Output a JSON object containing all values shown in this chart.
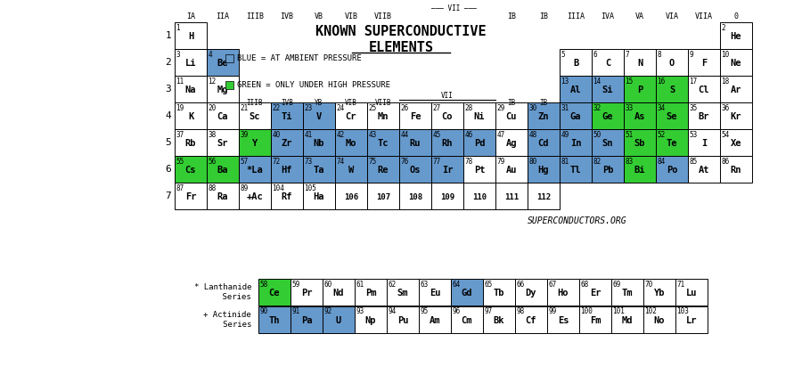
{
  "title_line1": "KNOWN SUPERCONDUCTIVE ELEMENTS",
  "title_line2": "ELEMENTS",
  "legend_blue": "BLUE = AT AMBIENT PRESSURE",
  "legend_green": "GREEN = ONLY UNDER HIGH PRESSURE",
  "website": "SUPERCONDUCTORS.ORG",
  "blue_color": "#6699cc",
  "green_color": "#33cc33",
  "white_color": "#ffffff",
  "elements": [
    {
      "symbol": "H",
      "num": 1,
      "row": 1,
      "col": 1,
      "color": "white"
    },
    {
      "symbol": "He",
      "num": 2,
      "row": 1,
      "col": 18,
      "color": "white"
    },
    {
      "symbol": "Li",
      "num": 3,
      "row": 2,
      "col": 1,
      "color": "white"
    },
    {
      "symbol": "Be",
      "num": 4,
      "row": 2,
      "col": 2,
      "color": "blue"
    },
    {
      "symbol": "B",
      "num": 5,
      "row": 2,
      "col": 13,
      "color": "white"
    },
    {
      "symbol": "C",
      "num": 6,
      "row": 2,
      "col": 14,
      "color": "white"
    },
    {
      "symbol": "N",
      "num": 7,
      "row": 2,
      "col": 15,
      "color": "white"
    },
    {
      "symbol": "O",
      "num": 8,
      "row": 2,
      "col": 16,
      "color": "white"
    },
    {
      "symbol": "F",
      "num": 9,
      "row": 2,
      "col": 17,
      "color": "white"
    },
    {
      "symbol": "Ne",
      "num": 10,
      "row": 2,
      "col": 18,
      "color": "white"
    },
    {
      "symbol": "Na",
      "num": 11,
      "row": 3,
      "col": 1,
      "color": "white"
    },
    {
      "symbol": "Mg",
      "num": 12,
      "row": 3,
      "col": 2,
      "color": "white"
    },
    {
      "symbol": "Al",
      "num": 13,
      "row": 3,
      "col": 13,
      "color": "blue"
    },
    {
      "symbol": "Si",
      "num": 14,
      "row": 3,
      "col": 14,
      "color": "blue"
    },
    {
      "symbol": "P",
      "num": 15,
      "row": 3,
      "col": 15,
      "color": "green"
    },
    {
      "symbol": "S",
      "num": 16,
      "row": 3,
      "col": 16,
      "color": "green"
    },
    {
      "symbol": "Cl",
      "num": 17,
      "row": 3,
      "col": 17,
      "color": "white"
    },
    {
      "symbol": "Ar",
      "num": 18,
      "row": 3,
      "col": 18,
      "color": "white"
    },
    {
      "symbol": "K",
      "num": 19,
      "row": 4,
      "col": 1,
      "color": "white"
    },
    {
      "symbol": "Ca",
      "num": 20,
      "row": 4,
      "col": 2,
      "color": "white"
    },
    {
      "symbol": "Sc",
      "num": 21,
      "row": 4,
      "col": 3,
      "color": "white"
    },
    {
      "symbol": "Ti",
      "num": 22,
      "row": 4,
      "col": 4,
      "color": "blue"
    },
    {
      "symbol": "V",
      "num": 23,
      "row": 4,
      "col": 5,
      "color": "blue"
    },
    {
      "symbol": "Cr",
      "num": 24,
      "row": 4,
      "col": 6,
      "color": "white"
    },
    {
      "symbol": "Mn",
      "num": 25,
      "row": 4,
      "col": 7,
      "color": "white"
    },
    {
      "symbol": "Fe",
      "num": 26,
      "row": 4,
      "col": 8,
      "color": "white"
    },
    {
      "symbol": "Co",
      "num": 27,
      "row": 4,
      "col": 9,
      "color": "white"
    },
    {
      "symbol": "Ni",
      "num": 28,
      "row": 4,
      "col": 10,
      "color": "white"
    },
    {
      "symbol": "Cu",
      "num": 29,
      "row": 4,
      "col": 11,
      "color": "white"
    },
    {
      "symbol": "Zn",
      "num": 30,
      "row": 4,
      "col": 12,
      "color": "blue"
    },
    {
      "symbol": "Ga",
      "num": 31,
      "row": 4,
      "col": 13,
      "color": "blue"
    },
    {
      "symbol": "Ge",
      "num": 32,
      "row": 4,
      "col": 14,
      "color": "green"
    },
    {
      "symbol": "As",
      "num": 33,
      "row": 4,
      "col": 15,
      "color": "green"
    },
    {
      "symbol": "Se",
      "num": 34,
      "row": 4,
      "col": 16,
      "color": "green"
    },
    {
      "symbol": "Br",
      "num": 35,
      "row": 4,
      "col": 17,
      "color": "white"
    },
    {
      "symbol": "Kr",
      "num": 36,
      "row": 4,
      "col": 18,
      "color": "white"
    },
    {
      "symbol": "Rb",
      "num": 37,
      "row": 5,
      "col": 1,
      "color": "white"
    },
    {
      "symbol": "Sr",
      "num": 38,
      "row": 5,
      "col": 2,
      "color": "white"
    },
    {
      "symbol": "Y",
      "num": 39,
      "row": 5,
      "col": 3,
      "color": "green"
    },
    {
      "symbol": "Zr",
      "num": 40,
      "row": 5,
      "col": 4,
      "color": "blue"
    },
    {
      "symbol": "Nb",
      "num": 41,
      "row": 5,
      "col": 5,
      "color": "blue"
    },
    {
      "symbol": "Mo",
      "num": 42,
      "row": 5,
      "col": 6,
      "color": "blue"
    },
    {
      "symbol": "Tc",
      "num": 43,
      "row": 5,
      "col": 7,
      "color": "blue"
    },
    {
      "symbol": "Ru",
      "num": 44,
      "row": 5,
      "col": 8,
      "color": "blue"
    },
    {
      "symbol": "Rh",
      "num": 45,
      "row": 5,
      "col": 9,
      "color": "blue"
    },
    {
      "symbol": "Pd",
      "num": 46,
      "row": 5,
      "col": 10,
      "color": "blue"
    },
    {
      "symbol": "Ag",
      "num": 47,
      "row": 5,
      "col": 11,
      "color": "white"
    },
    {
      "symbol": "Cd",
      "num": 48,
      "row": 5,
      "col": 12,
      "color": "blue"
    },
    {
      "symbol": "In",
      "num": 49,
      "row": 5,
      "col": 13,
      "color": "blue"
    },
    {
      "symbol": "Sn",
      "num": 50,
      "row": 5,
      "col": 14,
      "color": "blue"
    },
    {
      "symbol": "Sb",
      "num": 51,
      "row": 5,
      "col": 15,
      "color": "green"
    },
    {
      "symbol": "Te",
      "num": 52,
      "row": 5,
      "col": 16,
      "color": "green"
    },
    {
      "symbol": "I",
      "num": 53,
      "row": 5,
      "col": 17,
      "color": "white"
    },
    {
      "symbol": "Xe",
      "num": 54,
      "row": 5,
      "col": 18,
      "color": "white"
    },
    {
      "symbol": "Cs",
      "num": 55,
      "row": 6,
      "col": 1,
      "color": "green"
    },
    {
      "symbol": "Ba",
      "num": 56,
      "row": 6,
      "col": 2,
      "color": "green"
    },
    {
      "symbol": "*La",
      "num": 57,
      "row": 6,
      "col": 3,
      "color": "blue"
    },
    {
      "symbol": "Hf",
      "num": 72,
      "row": 6,
      "col": 4,
      "color": "blue"
    },
    {
      "symbol": "Ta",
      "num": 73,
      "row": 6,
      "col": 5,
      "color": "blue"
    },
    {
      "symbol": "W",
      "num": 74,
      "row": 6,
      "col": 6,
      "color": "blue"
    },
    {
      "symbol": "Re",
      "num": 75,
      "row": 6,
      "col": 7,
      "color": "blue"
    },
    {
      "symbol": "Os",
      "num": 76,
      "row": 6,
      "col": 8,
      "color": "blue"
    },
    {
      "symbol": "Ir",
      "num": 77,
      "row": 6,
      "col": 9,
      "color": "blue"
    },
    {
      "symbol": "Pt",
      "num": 78,
      "row": 6,
      "col": 10,
      "color": "white"
    },
    {
      "symbol": "Au",
      "num": 79,
      "row": 6,
      "col": 11,
      "color": "white"
    },
    {
      "symbol": "Hg",
      "num": 80,
      "row": 6,
      "col": 12,
      "color": "blue"
    },
    {
      "symbol": "Tl",
      "num": 81,
      "row": 6,
      "col": 13,
      "color": "blue"
    },
    {
      "symbol": "Pb",
      "num": 82,
      "row": 6,
      "col": 14,
      "color": "blue"
    },
    {
      "symbol": "Bi",
      "num": 83,
      "row": 6,
      "col": 15,
      "color": "green"
    },
    {
      "symbol": "Po",
      "num": 84,
      "row": 6,
      "col": 16,
      "color": "blue"
    },
    {
      "symbol": "At",
      "num": 85,
      "row": 6,
      "col": 17,
      "color": "white"
    },
    {
      "symbol": "Rn",
      "num": 86,
      "row": 6,
      "col": 18,
      "color": "white"
    },
    {
      "symbol": "Fr",
      "num": 87,
      "row": 7,
      "col": 1,
      "color": "white"
    },
    {
      "symbol": "Ra",
      "num": 88,
      "row": 7,
      "col": 2,
      "color": "white"
    },
    {
      "symbol": "+Ac",
      "num": 89,
      "row": 7,
      "col": 3,
      "color": "white"
    },
    {
      "symbol": "Rf",
      "num": 104,
      "row": 7,
      "col": 4,
      "color": "white"
    },
    {
      "symbol": "Ha",
      "num": 105,
      "row": 7,
      "col": 5,
      "color": "white"
    },
    {
      "symbol": "106",
      "num": 106,
      "row": 7,
      "col": 6,
      "color": "white"
    },
    {
      "symbol": "107",
      "num": 107,
      "row": 7,
      "col": 7,
      "color": "white"
    },
    {
      "symbol": "108",
      "num": 108,
      "row": 7,
      "col": 8,
      "color": "white"
    },
    {
      "symbol": "109",
      "num": 109,
      "row": 7,
      "col": 9,
      "color": "white"
    },
    {
      "symbol": "110",
      "num": 110,
      "row": 7,
      "col": 10,
      "color": "white"
    },
    {
      "symbol": "111",
      "num": 111,
      "row": 7,
      "col": 11,
      "color": "white"
    },
    {
      "symbol": "112",
      "num": 112,
      "row": 7,
      "col": 12,
      "color": "white"
    }
  ],
  "lanthanides": [
    {
      "symbol": "Ce",
      "num": 58,
      "color": "green"
    },
    {
      "symbol": "Pr",
      "num": 59,
      "color": "white"
    },
    {
      "symbol": "Nd",
      "num": 60,
      "color": "white"
    },
    {
      "symbol": "Pm",
      "num": 61,
      "color": "white"
    },
    {
      "symbol": "Sm",
      "num": 62,
      "color": "white"
    },
    {
      "symbol": "Eu",
      "num": 63,
      "color": "white"
    },
    {
      "symbol": "Gd",
      "num": 64,
      "color": "blue"
    },
    {
      "symbol": "Tb",
      "num": 65,
      "color": "white"
    },
    {
      "symbol": "Dy",
      "num": 66,
      "color": "white"
    },
    {
      "symbol": "Ho",
      "num": 67,
      "color": "white"
    },
    {
      "symbol": "Er",
      "num": 68,
      "color": "white"
    },
    {
      "symbol": "Tm",
      "num": 69,
      "color": "white"
    },
    {
      "symbol": "Yb",
      "num": 70,
      "color": "white"
    },
    {
      "symbol": "Lu",
      "num": 71,
      "color": "white"
    }
  ],
  "actinides": [
    {
      "symbol": "Th",
      "num": 90,
      "color": "blue"
    },
    {
      "symbol": "Pa",
      "num": 91,
      "color": "blue"
    },
    {
      "symbol": "U",
      "num": 92,
      "color": "blue"
    },
    {
      "symbol": "Np",
      "num": 93,
      "color": "white"
    },
    {
      "symbol": "Pu",
      "num": 94,
      "color": "white"
    },
    {
      "symbol": "Am",
      "num": 95,
      "color": "white"
    },
    {
      "symbol": "Cm",
      "num": 96,
      "color": "white"
    },
    {
      "symbol": "Bk",
      "num": 97,
      "color": "white"
    },
    {
      "symbol": "Cf",
      "num": 98,
      "color": "white"
    },
    {
      "symbol": "Es",
      "num": 99,
      "color": "white"
    },
    {
      "symbol": "Fm",
      "num": 100,
      "color": "white"
    },
    {
      "symbol": "Md",
      "num": 101,
      "color": "white"
    },
    {
      "symbol": "No",
      "num": 102,
      "color": "white"
    },
    {
      "symbol": "Lr",
      "num": 103,
      "color": "white"
    }
  ]
}
